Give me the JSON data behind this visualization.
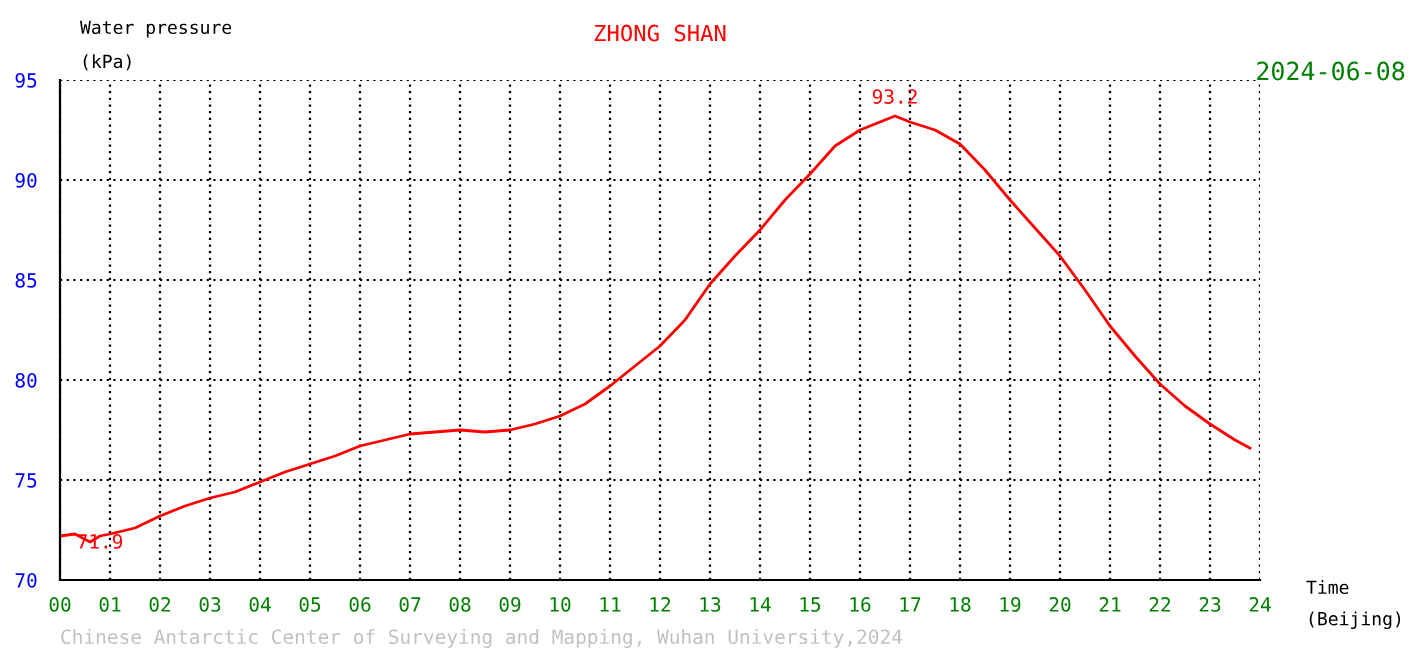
{
  "chart_data": {
    "type": "line",
    "title": "ZHONG SHAN",
    "subtitle": "2024-06-08",
    "ylabel": "Water pressure\n(kPa)",
    "xlabel": "Time\n(Beijing)",
    "x": [
      0,
      0.3,
      0.6,
      0.8,
      1,
      1.5,
      2,
      2.5,
      3,
      3.5,
      4,
      4.5,
      5,
      5.5,
      6,
      6.5,
      7,
      7.5,
      8,
      8.5,
      9,
      9.5,
      10,
      10.5,
      11,
      11.5,
      12,
      12.5,
      13,
      13.5,
      14,
      14.5,
      15,
      15.5,
      16,
      16.5,
      16.7,
      17,
      17.5,
      18,
      18.5,
      19,
      19.5,
      20,
      20.5,
      21,
      21.5,
      22,
      22.5,
      23,
      23.5,
      23.8
    ],
    "series": [
      {
        "color": "#ff0000",
        "values": [
          72.2,
          72.3,
          71.9,
          72.2,
          72.3,
          72.6,
          73.2,
          73.7,
          74.1,
          74.4,
          74.9,
          75.4,
          75.8,
          76.2,
          76.7,
          77.0,
          77.3,
          77.4,
          77.5,
          77.4,
          77.5,
          77.8,
          78.2,
          78.8,
          79.7,
          80.7,
          81.7,
          83.0,
          84.8,
          86.2,
          87.5,
          89.0,
          90.3,
          91.7,
          92.5,
          93.0,
          93.2,
          92.9,
          92.5,
          91.8,
          90.5,
          89.0,
          87.6,
          86.2,
          84.5,
          82.7,
          81.2,
          79.8,
          78.7,
          77.8,
          77.0,
          76.6
        ]
      }
    ],
    "xlim": [
      0,
      24
    ],
    "ylim": [
      70,
      95
    ],
    "xticks": [
      {
        "value": 0,
        "label": "00"
      },
      {
        "value": 1,
        "label": "01"
      },
      {
        "value": 2,
        "label": "02"
      },
      {
        "value": 3,
        "label": "03"
      },
      {
        "value": 4,
        "label": "04"
      },
      {
        "value": 5,
        "label": "05"
      },
      {
        "value": 6,
        "label": "06"
      },
      {
        "value": 7,
        "label": "07"
      },
      {
        "value": 8,
        "label": "08"
      },
      {
        "value": 9,
        "label": "09"
      },
      {
        "value": 10,
        "label": "10"
      },
      {
        "value": 11,
        "label": "11"
      },
      {
        "value": 12,
        "label": "12"
      },
      {
        "value": 13,
        "label": "13"
      },
      {
        "value": 14,
        "label": "14"
      },
      {
        "value": 15,
        "label": "15"
      },
      {
        "value": 16,
        "label": "16"
      },
      {
        "value": 17,
        "label": "17"
      },
      {
        "value": 18,
        "label": "18"
      },
      {
        "value": 19,
        "label": "19"
      },
      {
        "value": 20,
        "label": "20"
      },
      {
        "value": 21,
        "label": "21"
      },
      {
        "value": 22,
        "label": "22"
      },
      {
        "value": 23,
        "label": "23"
      },
      {
        "value": 24,
        "label": "24"
      }
    ],
    "yticks": [
      70,
      75,
      80,
      85,
      90,
      95
    ],
    "grid": true,
    "annotations": [
      {
        "text": "93.2",
        "x": 16.7,
        "y": 93.2
      },
      {
        "text": "71.9",
        "x": 0.8,
        "y": 71.9
      },
      "Chinese Antarctic Center of Surveying and Mapping, Wuhan University,2024"
    ]
  }
}
